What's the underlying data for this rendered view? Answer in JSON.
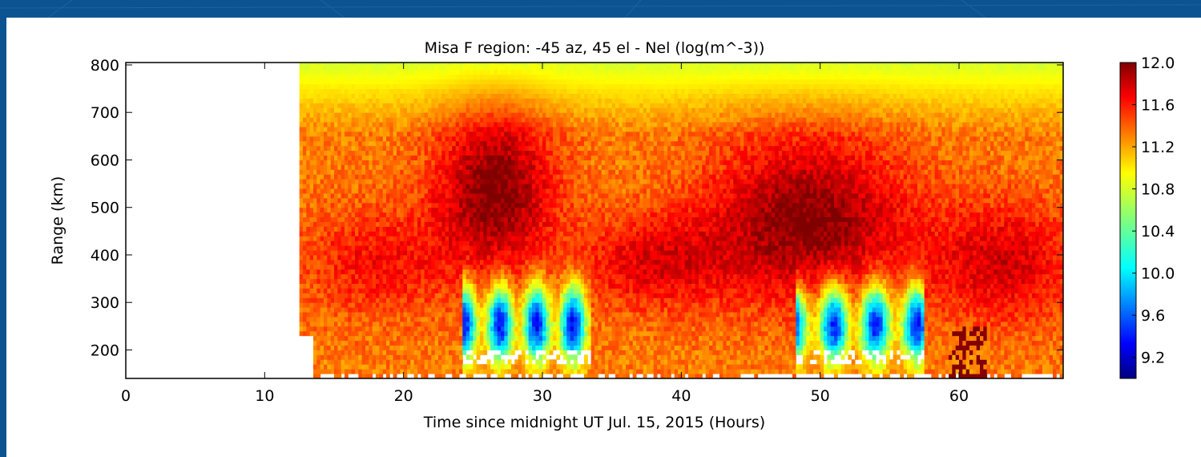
{
  "chart_data": {
    "type": "heatmap",
    "title": "Misa F region: -45 az, 45 el - Nel (log(m^-3))",
    "xlabel": "Time since midnight UT Jul. 15, 2015 (Hours)",
    "ylabel": "Range (km)",
    "xlim": [
      0,
      67.5
    ],
    "ylim": [
      140,
      805
    ],
    "xticks": [
      "0",
      "10",
      "20",
      "30",
      "40",
      "50",
      "60"
    ],
    "yticks": [
      "200",
      "300",
      "400",
      "500",
      "600",
      "700",
      "800"
    ],
    "colorbar": {
      "range": [
        9.0,
        12.0
      ],
      "ticks": [
        "12.0",
        "11.6",
        "11.2",
        "10.8",
        "10.4",
        "10.0",
        "9.6",
        "9.2"
      ],
      "colormap": "jet"
    },
    "data_start_hour": 12.5,
    "features": [
      {
        "x_range": [
          24,
          30
        ],
        "peak_range_km": [
          450,
          600
        ],
        "value": 12.0
      },
      {
        "x_range": [
          44,
          54
        ],
        "peak_range_km": [
          400,
          550
        ],
        "value": 12.0
      },
      {
        "x_range": [
          24,
          33
        ],
        "depletion_range_km": [
          180,
          330
        ],
        "value": 9.4
      },
      {
        "x_range": [
          48,
          57
        ],
        "depletion_range_km": [
          180,
          330
        ],
        "value": 9.4
      }
    ]
  }
}
